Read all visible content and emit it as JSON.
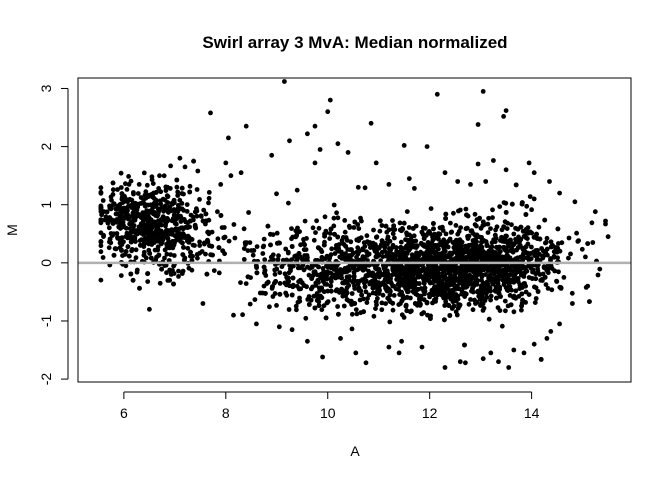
{
  "chart_data": {
    "type": "scatter",
    "title": "Swirl array 3 MvA: Median normalized",
    "xlabel": "A",
    "ylabel": "M",
    "xlim": [
      5.1,
      15.95
    ],
    "ylim": [
      -2.05,
      3.18
    ],
    "xticks": [
      6,
      8,
      10,
      12,
      14
    ],
    "yticks": [
      -2,
      -1,
      0,
      1,
      2,
      3
    ],
    "grid": false,
    "legend": "none",
    "reference_line": {
      "y": 0,
      "color": "#b0b0b0"
    },
    "point_color": "#000000",
    "approx_point_count": 8448,
    "points": [
      [
        9.15,
        3.12
      ],
      [
        13.05,
        2.95
      ],
      [
        12.15,
        2.9
      ],
      [
        10.05,
        2.8
      ],
      [
        10.0,
        2.6
      ],
      [
        7.7,
        2.58
      ],
      [
        13.5,
        2.62
      ],
      [
        13.45,
        2.52
      ],
      [
        10.85,
        2.4
      ],
      [
        12.95,
        2.38
      ],
      [
        9.75,
        2.35
      ],
      [
        8.4,
        2.35
      ],
      [
        9.6,
        2.22
      ],
      [
        8.05,
        2.15
      ],
      [
        9.25,
        2.1
      ],
      [
        10.2,
        2.05
      ],
      [
        11.5,
        2.02
      ],
      [
        11.95,
        2.0
      ],
      [
        9.85,
        1.95
      ],
      [
        10.4,
        1.9
      ],
      [
        8.9,
        1.85
      ],
      [
        7.1,
        1.8
      ],
      [
        8.0,
        1.72
      ],
      [
        9.75,
        1.72
      ],
      [
        10.95,
        1.72
      ],
      [
        12.95,
        1.7
      ],
      [
        13.25,
        1.76
      ],
      [
        13.95,
        1.72
      ],
      [
        7.2,
        1.65
      ],
      [
        8.3,
        1.55
      ],
      [
        8.1,
        1.5
      ],
      [
        7.45,
        1.58
      ],
      [
        6.55,
        1.48
      ],
      [
        6.7,
        1.5
      ],
      [
        12.3,
        1.55
      ],
      [
        11.6,
        1.45
      ],
      [
        13.5,
        1.6
      ],
      [
        14.05,
        1.55
      ],
      [
        14.35,
        1.4
      ],
      [
        14.05,
        1.1
      ],
      [
        14.55,
        1.2
      ],
      [
        14.85,
        1.05
      ],
      [
        15.25,
        0.88
      ],
      [
        15.45,
        0.72
      ],
      [
        15.5,
        0.45
      ],
      [
        15.2,
        0.35
      ],
      [
        5.75,
        0.95
      ],
      [
        5.55,
        0.7
      ],
      [
        5.8,
        0.5
      ],
      [
        6.1,
        1.35
      ],
      [
        5.95,
        -0.22
      ],
      [
        6.5,
        -0.8
      ],
      [
        6.9,
        -0.3
      ],
      [
        7.55,
        -0.7
      ],
      [
        8.15,
        -0.9
      ],
      [
        8.6,
        -1.05
      ],
      [
        9.05,
        -1.1
      ],
      [
        9.3,
        -1.15
      ],
      [
        9.6,
        -1.35
      ],
      [
        9.9,
        -1.62
      ],
      [
        10.25,
        -1.3
      ],
      [
        10.55,
        -1.55
      ],
      [
        10.75,
        -1.72
      ],
      [
        11.2,
        -1.45
      ],
      [
        11.4,
        -1.55
      ],
      [
        11.45,
        -1.35
      ],
      [
        11.85,
        -1.45
      ],
      [
        12.3,
        -1.8
      ],
      [
        12.6,
        -1.7
      ],
      [
        12.7,
        -1.72
      ],
      [
        13.05,
        -1.65
      ],
      [
        13.2,
        -1.55
      ],
      [
        13.35,
        -1.7
      ],
      [
        13.55,
        -1.8
      ],
      [
        13.65,
        -1.5
      ],
      [
        13.85,
        -1.55
      ],
      [
        14.05,
        -1.4
      ],
      [
        14.3,
        -1.3
      ],
      [
        14.55,
        -1.05
      ],
      [
        14.8,
        -0.7
      ],
      [
        15.1,
        -0.4
      ],
      [
        11.2,
        1.35
      ],
      [
        12.55,
        1.4
      ],
      [
        10.6,
        1.3
      ],
      [
        9.4,
        1.25
      ],
      [
        12.8,
        1.35
      ],
      [
        7.9,
        1.35
      ],
      [
        11.7,
        1.28
      ],
      [
        13.1,
        1.4
      ],
      [
        6.3,
        1.35
      ]
    ]
  }
}
